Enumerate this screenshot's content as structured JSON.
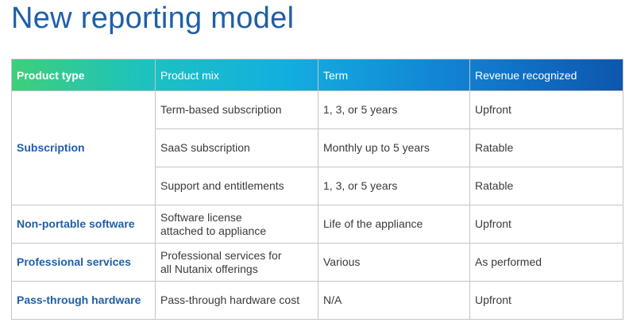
{
  "title": "New reporting model",
  "table": {
    "headers": [
      "Product type",
      "Product mix",
      "Term",
      "Revenue recognized"
    ],
    "rows": [
      {
        "product_type": "Subscription",
        "items": [
          {
            "mix": "Term-based subscription",
            "term": "1, 3, or 5 years",
            "revenue": "Upfront"
          },
          {
            "mix": "SaaS subscription",
            "term": "Monthly up to 5 years",
            "revenue": "Ratable"
          },
          {
            "mix": "Support and entitlements",
            "term": "1, 3, or 5 years",
            "revenue": "Ratable"
          }
        ]
      },
      {
        "product_type": "Non-portable software",
        "items": [
          {
            "mix_line1": "Software license",
            "mix_line2": "attached to appliance",
            "term": "Life of the appliance",
            "revenue": "Upfront"
          }
        ]
      },
      {
        "product_type": "Professional services",
        "items": [
          {
            "mix_line1": "Professional services for",
            "mix_line2": "all Nutanix offerings",
            "term": "Various",
            "revenue": "As performed"
          }
        ]
      },
      {
        "product_type": "Pass-through hardware",
        "items": [
          {
            "mix": "Pass-through hardware cost",
            "term": "N/A",
            "revenue": "Upfront"
          }
        ]
      }
    ]
  },
  "colors": {
    "title": "#1f5fa8",
    "product_type_text": "#1f5fa8",
    "header_gradient_start": "#3ecf7a",
    "header_gradient_end": "#0d56ae",
    "border": "#c4c4c4"
  }
}
